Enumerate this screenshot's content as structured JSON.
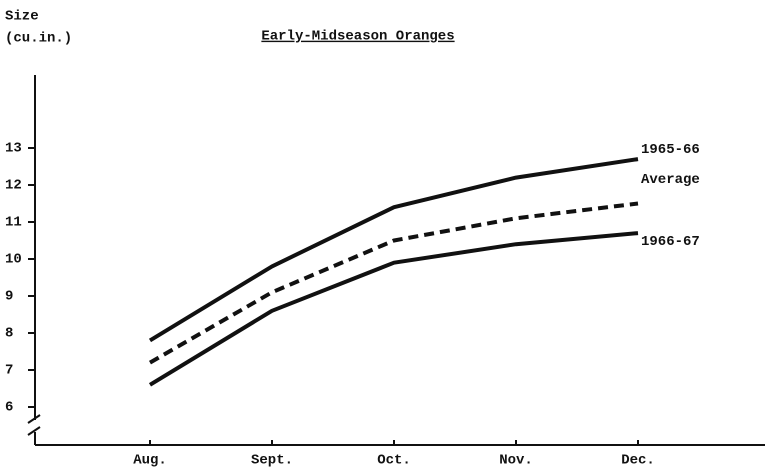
{
  "chart_data": {
    "type": "line",
    "title": "Early-Midseason Oranges",
    "ylabel_lines": [
      "Size",
      "(cu.in.)"
    ],
    "categories": [
      "Aug.",
      "Sept.",
      "Oct.",
      "Nov.",
      "Dec."
    ],
    "series": [
      {
        "name": "1965-66",
        "color": "#111111",
        "dash": false,
        "values": [
          7.8,
          9.8,
          11.4,
          12.2,
          12.7
        ]
      },
      {
        "name": "Average",
        "color": "#111111",
        "dash": true,
        "values": [
          7.2,
          9.1,
          10.5,
          11.1,
          11.5
        ]
      },
      {
        "name": "1966-67",
        "color": "#111111",
        "dash": false,
        "values": [
          6.6,
          8.6,
          9.9,
          10.4,
          10.7
        ]
      }
    ],
    "ylim": [
      5,
      15
    ],
    "yticks": [
      6,
      7,
      8,
      9,
      10,
      11,
      12,
      13
    ],
    "grid": false
  }
}
